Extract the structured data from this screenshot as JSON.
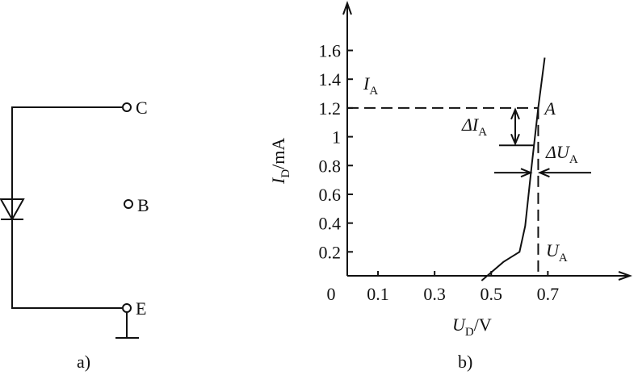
{
  "circuit": {
    "terminals": [
      "C",
      "B",
      "E"
    ],
    "caption": "a)"
  },
  "chart_data": {
    "type": "line",
    "caption": "b)",
    "xlabel": {
      "text": "U",
      "sub": "D",
      "unit": "/V"
    },
    "ylabel": {
      "text": "I",
      "sub": "D",
      "unit": "/mA"
    },
    "x": [
      0.466,
      0.543,
      0.6,
      0.62,
      0.643,
      0.666,
      0.689
    ],
    "values": [
      0,
      0.13,
      0.2,
      0.38,
      0.8,
      1.2,
      1.55
    ],
    "xlim": [
      0,
      0.99
    ],
    "ylim": [
      0,
      1.9
    ],
    "xticks": [
      0,
      0.1,
      0.3,
      0.5,
      0.7
    ],
    "yticks": [
      0.2,
      0.4,
      0.6,
      0.8,
      1.0,
      1.2,
      1.4,
      1.6
    ],
    "point_A": {
      "label": "A",
      "x": 0.666,
      "y": 1.2
    },
    "delta_I_low": 0.94,
    "delta_U_y": 0.75,
    "annotations": {
      "IA": {
        "text": "I",
        "sub": "A"
      },
      "dIA": {
        "text": "ΔI",
        "sub": "A"
      },
      "dUA": {
        "text": "ΔU",
        "sub": "A"
      },
      "UA": {
        "text": "U",
        "sub": "A"
      }
    }
  }
}
